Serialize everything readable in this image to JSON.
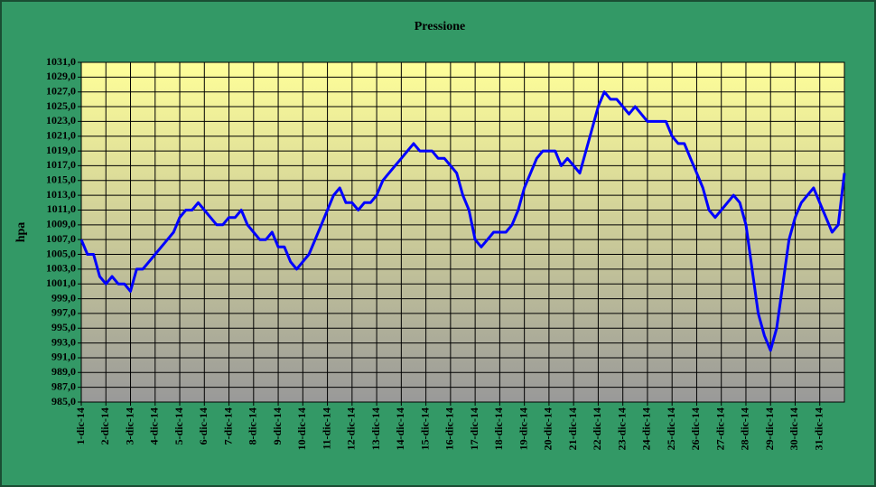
{
  "chart_data": {
    "type": "line",
    "title": "Pressione",
    "y_label": "hpa",
    "categories": [
      "1-dic-14",
      null,
      null,
      null,
      "2-dic-14",
      null,
      null,
      null,
      "3-dic-14",
      null,
      null,
      null,
      "4-dic-14",
      null,
      null,
      null,
      "5-dic-14",
      null,
      null,
      null,
      "6-dic-14",
      null,
      null,
      null,
      "7-dic-14",
      null,
      null,
      null,
      "8-dic-14",
      null,
      null,
      null,
      "9-dic-14",
      null,
      null,
      null,
      "10-dic-14",
      null,
      null,
      null,
      "11-dic-14",
      null,
      null,
      null,
      "12-dic-14",
      null,
      null,
      null,
      "13-dic-14",
      null,
      null,
      null,
      "14-dic-14",
      null,
      null,
      null,
      "15-dic-14",
      null,
      null,
      null,
      "16-dic-14",
      null,
      null,
      null,
      "17-dic-14",
      null,
      null,
      null,
      "18-dic-14",
      null,
      null,
      null,
      "19-dic-14",
      null,
      null,
      null,
      "20-dic-14",
      null,
      null,
      null,
      "21-dic-14",
      null,
      null,
      null,
      "22-dic-14",
      null,
      null,
      null,
      "23-dic-14",
      null,
      null,
      null,
      "24-dic-14",
      null,
      null,
      null,
      "25-dic-14",
      null,
      null,
      null,
      "26-dic-14",
      null,
      null,
      null,
      "27-dic-14",
      null,
      null,
      null,
      "28-dic-14",
      null,
      null,
      null,
      "29-dic-14",
      null,
      null,
      null,
      "30-dic-14",
      null,
      null,
      null,
      "31-dic-14",
      null,
      null,
      null,
      null
    ],
    "series": [
      {
        "color": "#0000ff",
        "values": [
          1007,
          1005,
          1005,
          1002,
          1001,
          1002,
          1001,
          1001,
          1000,
          1003,
          1003,
          1004,
          1005,
          1006,
          1007,
          1008,
          1010,
          1011,
          1011,
          1012,
          1011,
          1010,
          1009,
          1009,
          1010,
          1010,
          1011,
          1009,
          1008,
          1007,
          1007,
          1008,
          1006,
          1006,
          1004,
          1003,
          1004,
          1005,
          1007,
          1009,
          1011,
          1013,
          1014,
          1012,
          1012,
          1011,
          1012,
          1012,
          1013,
          1015,
          1016,
          1017,
          1018,
          1019,
          1020,
          1019,
          1019,
          1019,
          1018,
          1018,
          1017,
          1016,
          1013,
          1011,
          1007,
          1006,
          1007,
          1008,
          1008,
          1008,
          1009,
          1011,
          1014,
          1016,
          1018,
          1019,
          1019,
          1019,
          1017,
          1018,
          1017,
          1016,
          1019,
          1022,
          1025,
          1027,
          1026,
          1026,
          1025,
          1024,
          1025,
          1024,
          1023,
          1023,
          1023,
          1023,
          1021,
          1020,
          1020,
          1018,
          1016,
          1014,
          1011,
          1010,
          1011,
          1012,
          1013,
          1012,
          1009,
          1003,
          997,
          994,
          992,
          995,
          1001,
          1007,
          1010,
          1012,
          1013,
          1014,
          1012,
          1010,
          1008,
          1009,
          1016
        ]
      }
    ],
    "ylim": [
      985,
      1031
    ],
    "yticks": [
      {
        "value": 985,
        "label": "985,0"
      },
      {
        "value": 987,
        "label": "987,0"
      },
      {
        "value": 989,
        "label": "989,0"
      },
      {
        "value": 991,
        "label": "991,0"
      },
      {
        "value": 993,
        "label": "993,0"
      },
      {
        "value": 995,
        "label": "995,0"
      },
      {
        "value": 997,
        "label": "997,0"
      },
      {
        "value": 999,
        "label": "999,0"
      },
      {
        "value": 1001,
        "label": "1001,0"
      },
      {
        "value": 1003,
        "label": "1003,0"
      },
      {
        "value": 1005,
        "label": "1005,0"
      },
      {
        "value": 1007,
        "label": "1007,0"
      },
      {
        "value": 1009,
        "label": "1009,0"
      },
      {
        "value": 1011,
        "label": "1011,0"
      },
      {
        "value": 1013,
        "label": "1013,0"
      },
      {
        "value": 1015,
        "label": "1015,0"
      },
      {
        "value": 1017,
        "label": "1017,0"
      },
      {
        "value": 1019,
        "label": "1019,0"
      },
      {
        "value": 1021,
        "label": "1021,0"
      },
      {
        "value": 1023,
        "label": "1023,0"
      },
      {
        "value": 1025,
        "label": "1025,0"
      },
      {
        "value": 1027,
        "label": "1027,0"
      },
      {
        "value": 1029,
        "label": "1029,0"
      },
      {
        "value": 1031,
        "label": "1031,0"
      }
    ],
    "grid": true
  }
}
